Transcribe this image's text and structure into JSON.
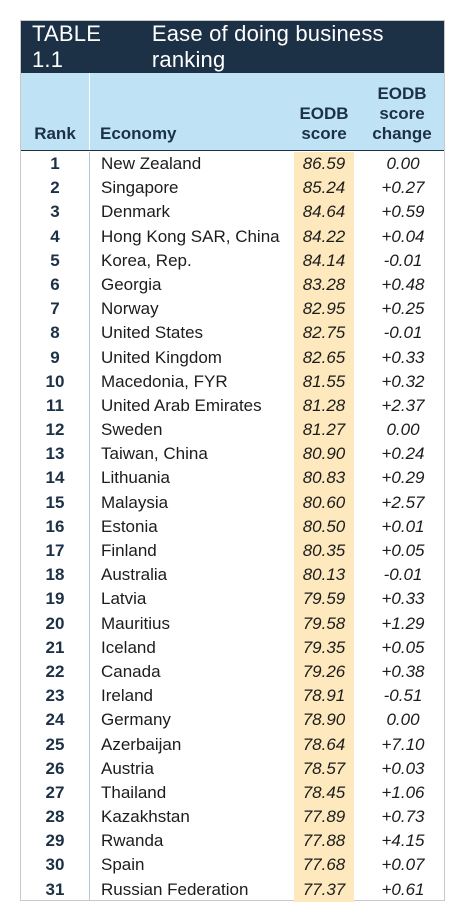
{
  "table": {
    "number": "TABLE 1.1",
    "title": "Ease of doing business ranking",
    "columns": {
      "rank": "Rank",
      "economy": "Economy",
      "score_line1": "EODB",
      "score_line2": "score",
      "change_line1": "EODB",
      "change_line2": "score",
      "change_line3": "change"
    },
    "rows": [
      {
        "rank": "1",
        "economy": "New Zealand",
        "score": "86.59",
        "change": "0.00"
      },
      {
        "rank": "2",
        "economy": "Singapore",
        "score": "85.24",
        "change": "+0.27"
      },
      {
        "rank": "3",
        "economy": "Denmark",
        "score": "84.64",
        "change": "+0.59"
      },
      {
        "rank": "4",
        "economy": "Hong Kong SAR, China",
        "score": "84.22",
        "change": "+0.04"
      },
      {
        "rank": "5",
        "economy": "Korea, Rep.",
        "score": "84.14",
        "change": "-0.01"
      },
      {
        "rank": "6",
        "economy": "Georgia",
        "score": "83.28",
        "change": "+0.48"
      },
      {
        "rank": "7",
        "economy": "Norway",
        "score": "82.95",
        "change": "+0.25"
      },
      {
        "rank": "8",
        "economy": "United States",
        "score": "82.75",
        "change": "-0.01"
      },
      {
        "rank": "9",
        "economy": "United Kingdom",
        "score": "82.65",
        "change": "+0.33"
      },
      {
        "rank": "10",
        "economy": "Macedonia, FYR",
        "score": "81.55",
        "change": "+0.32"
      },
      {
        "rank": "11",
        "economy": "United Arab Emirates",
        "score": "81.28",
        "change": "+2.37"
      },
      {
        "rank": "12",
        "economy": "Sweden",
        "score": "81.27",
        "change": "0.00"
      },
      {
        "rank": "13",
        "economy": "Taiwan, China",
        "score": "80.90",
        "change": "+0.24"
      },
      {
        "rank": "14",
        "economy": "Lithuania",
        "score": "80.83",
        "change": "+0.29"
      },
      {
        "rank": "15",
        "economy": "Malaysia",
        "score": "80.60",
        "change": "+2.57"
      },
      {
        "rank": "16",
        "economy": "Estonia",
        "score": "80.50",
        "change": "+0.01"
      },
      {
        "rank": "17",
        "economy": "Finland",
        "score": "80.35",
        "change": "+0.05"
      },
      {
        "rank": "18",
        "economy": "Australia",
        "score": "80.13",
        "change": "-0.01"
      },
      {
        "rank": "19",
        "economy": "Latvia",
        "score": "79.59",
        "change": "+0.33"
      },
      {
        "rank": "20",
        "economy": "Mauritius",
        "score": "79.58",
        "change": "+1.29"
      },
      {
        "rank": "21",
        "economy": "Iceland",
        "score": "79.35",
        "change": "+0.05"
      },
      {
        "rank": "22",
        "economy": "Canada",
        "score": "79.26",
        "change": "+0.38"
      },
      {
        "rank": "23",
        "economy": "Ireland",
        "score": "78.91",
        "change": "-0.51"
      },
      {
        "rank": "24",
        "economy": "Germany",
        "score": "78.90",
        "change": "0.00"
      },
      {
        "rank": "25",
        "economy": "Azerbaijan",
        "score": "78.64",
        "change": "+7.10"
      },
      {
        "rank": "26",
        "economy": "Austria",
        "score": "78.57",
        "change": "+0.03"
      },
      {
        "rank": "27",
        "economy": "Thailand",
        "score": "78.45",
        "change": "+1.06"
      },
      {
        "rank": "28",
        "economy": "Kazakhstan",
        "score": "77.89",
        "change": "+0.73"
      },
      {
        "rank": "29",
        "economy": "Rwanda",
        "score": "77.88",
        "change": "+4.15"
      },
      {
        "rank": "30",
        "economy": "Spain",
        "score": "77.68",
        "change": "+0.07"
      },
      {
        "rank": "31",
        "economy": "Russian Federation",
        "score": "77.37",
        "change": "+0.61"
      }
    ]
  },
  "colors": {
    "title_bg": "#1c3146",
    "header_bg": "#bfe3f5",
    "score_highlight": "#fde9bd"
  }
}
